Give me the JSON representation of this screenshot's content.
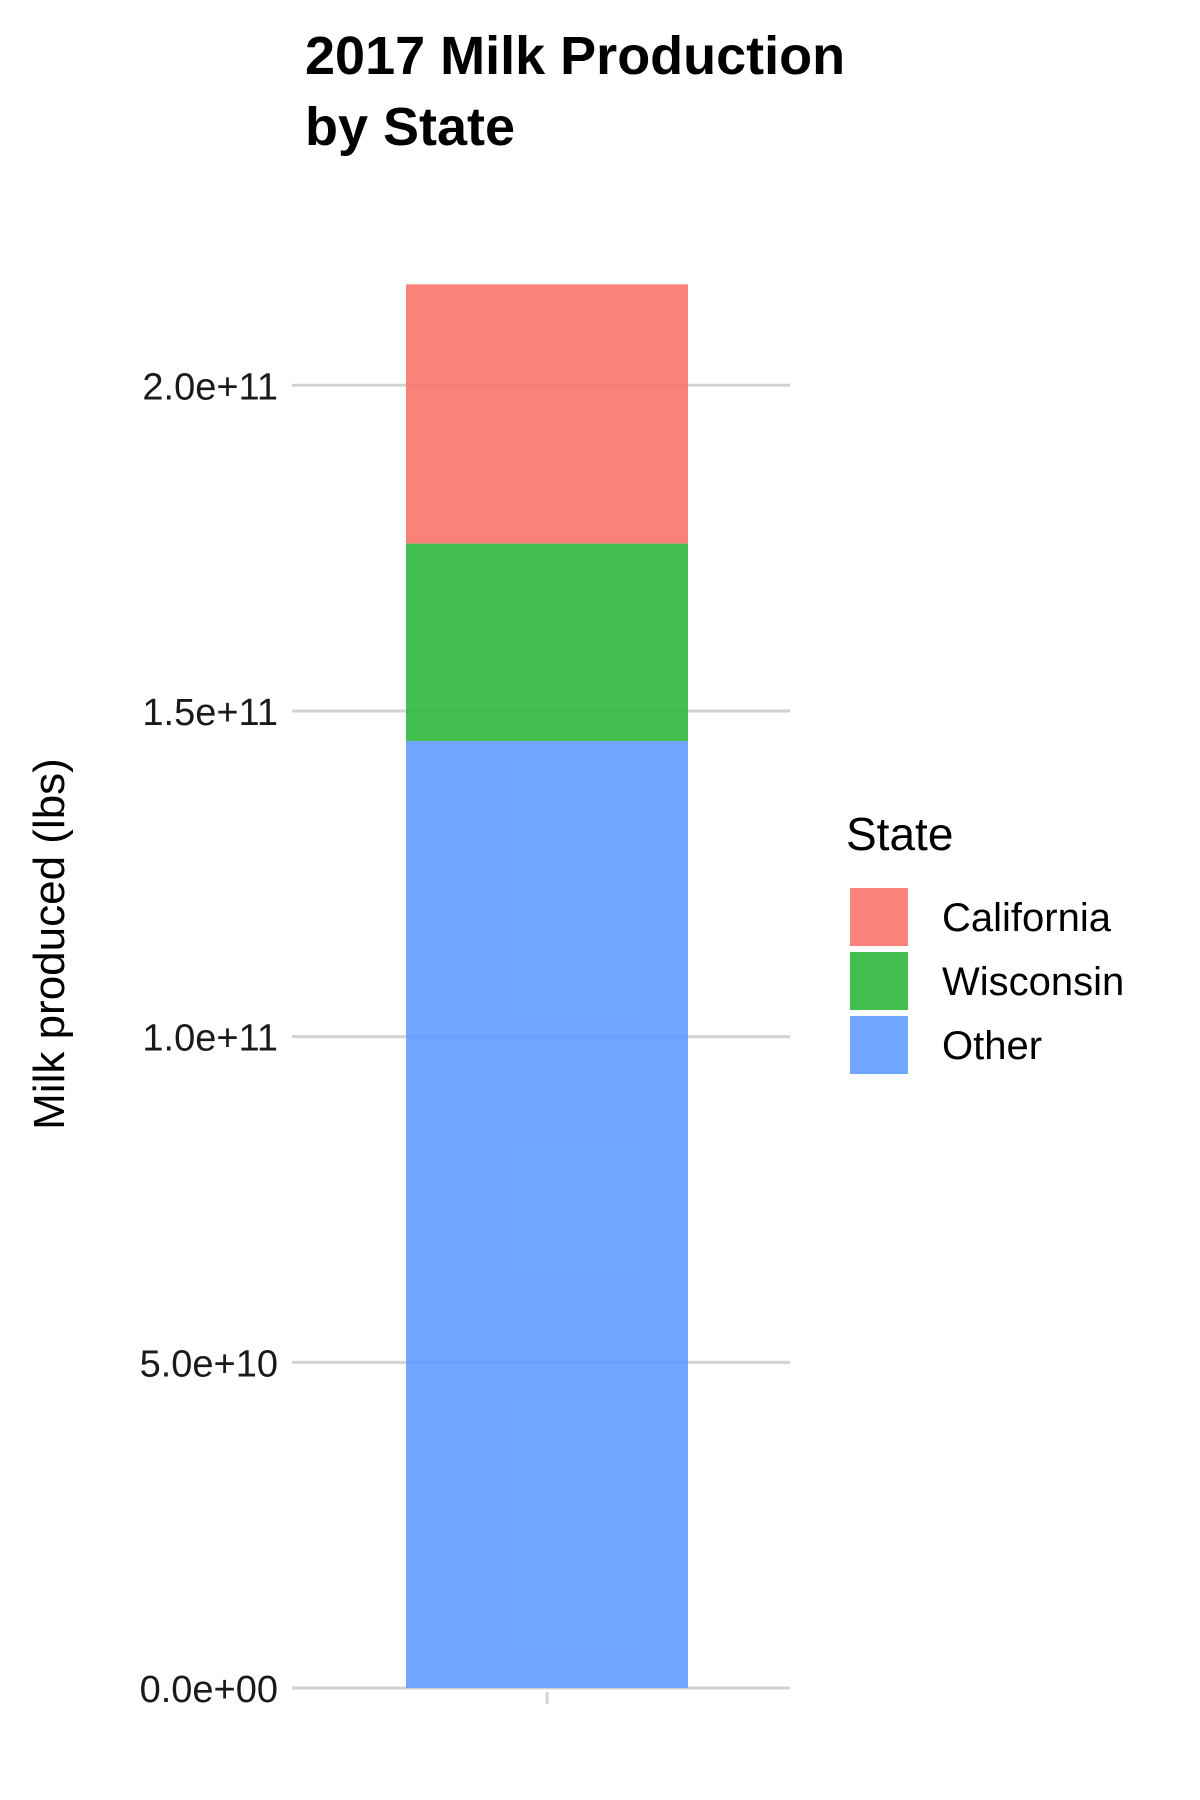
{
  "chart_data": {
    "type": "bar",
    "stacked": true,
    "title_lines": [
      "2017 Milk Production",
      "by State"
    ],
    "xlabel": "",
    "ylabel": "Milk produced (lbs)",
    "ylim": [
      0,
      220000000000
    ],
    "yticks": [
      0,
      50000000000,
      100000000000,
      150000000000,
      200000000000
    ],
    "ytick_labels": [
      "0.0e+00",
      "5.0e+10",
      "1.0e+11",
      "1.5e+11",
      "2.0e+11"
    ],
    "categories": [
      ""
    ],
    "legend_title": "State",
    "legend_position": "right",
    "grid": true,
    "series": [
      {
        "name": "California",
        "values": [
          39800000000
        ],
        "color": "#F8766D"
      },
      {
        "name": "Wisconsin",
        "values": [
          30300000000
        ],
        "color": "#2DB83C"
      },
      {
        "name": "Other",
        "values": [
          145400000000
        ],
        "color": "#619CFF"
      }
    ]
  }
}
